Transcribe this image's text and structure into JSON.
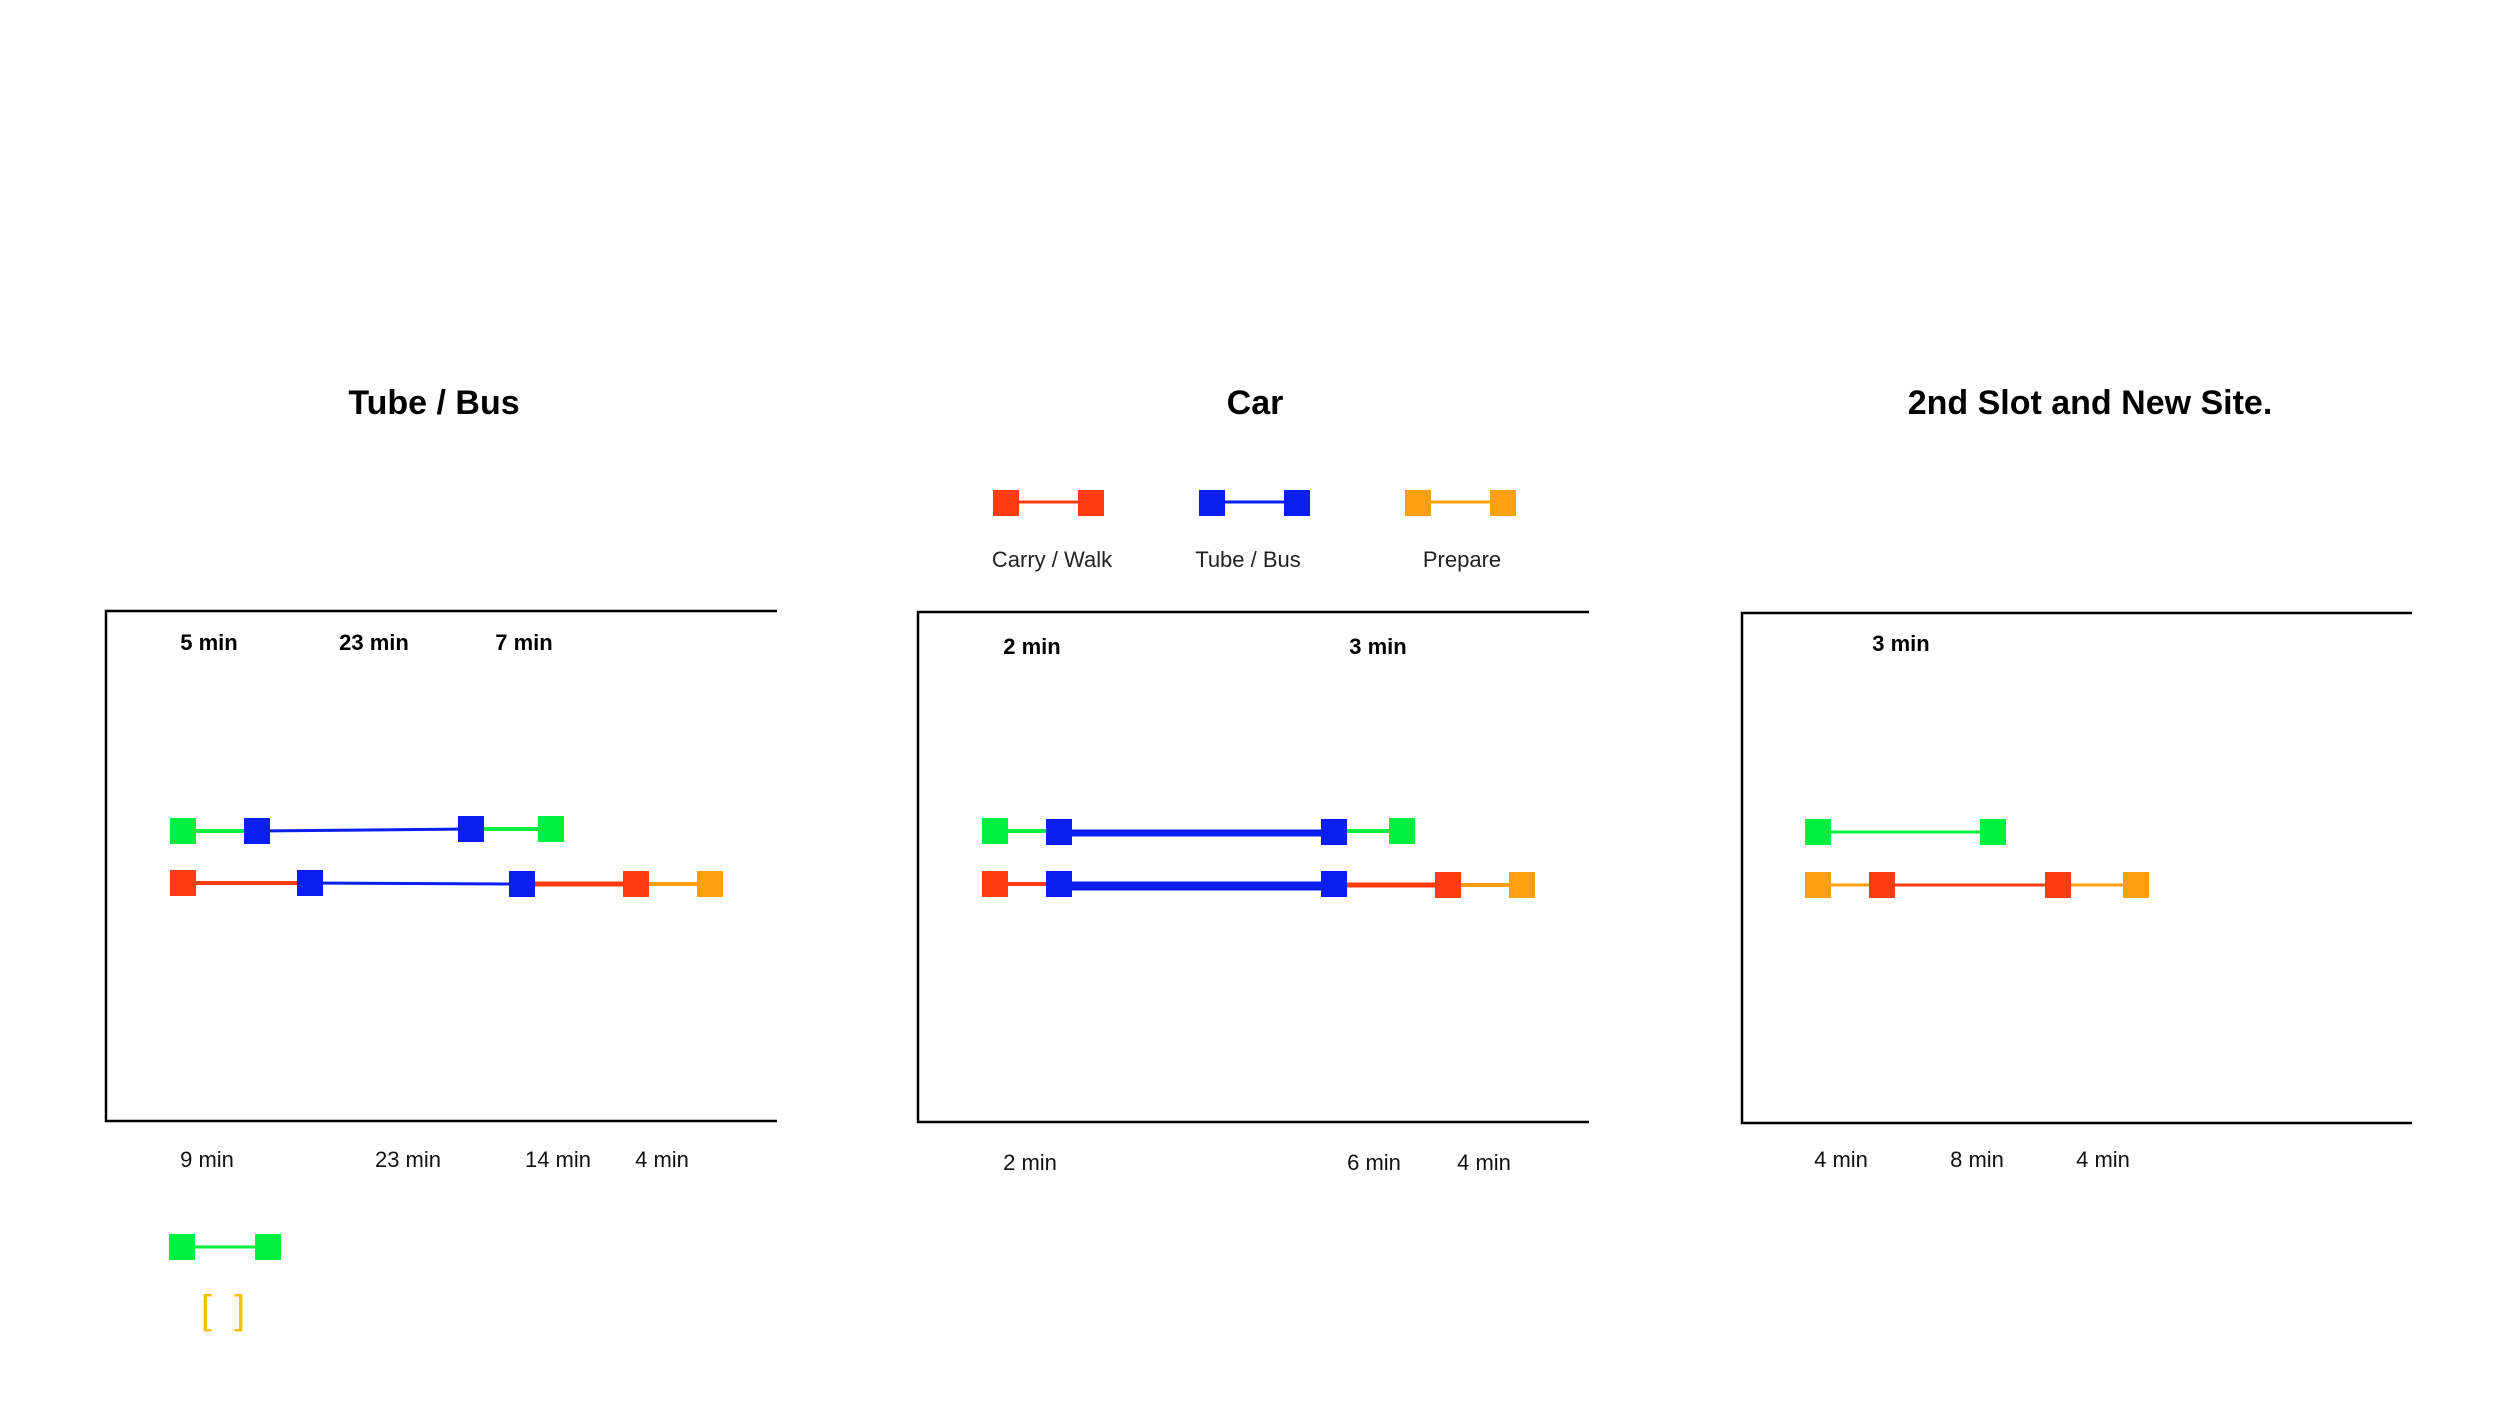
{
  "colors": {
    "carry_walk": "#ff3b10",
    "tube_bus": "#0a1ef0",
    "prepare": "#ffa010",
    "green": "#00f040",
    "bracket": "#f5c000",
    "frame": "#000000"
  },
  "legend": [
    {
      "key": "carry_walk",
      "label": "Carry / Walk"
    },
    {
      "key": "tube_bus",
      "label": "Tube / Bus"
    },
    {
      "key": "prepare",
      "label": "Prepare"
    }
  ],
  "panels": [
    {
      "id": "tube-bus",
      "title": "Tube / Bus",
      "top_labels": [
        "5 min",
        "23 min",
        "7 min"
      ],
      "bottom_labels": [
        "9 min",
        "23 min",
        "14 min",
        "4 min"
      ]
    },
    {
      "id": "car",
      "title": "Car",
      "top_labels": [
        "2 min",
        "3 min"
      ],
      "bottom_labels": [
        "2 min",
        "6 min",
        "4 min"
      ]
    },
    {
      "id": "second-slot",
      "title": "2nd Slot and New Site.",
      "top_labels": [
        "3 min"
      ],
      "bottom_labels": [
        "4 min",
        "8 min",
        "4 min"
      ]
    }
  ],
  "extra_legend": {
    "color": "green",
    "bracket": "[  ]"
  }
}
